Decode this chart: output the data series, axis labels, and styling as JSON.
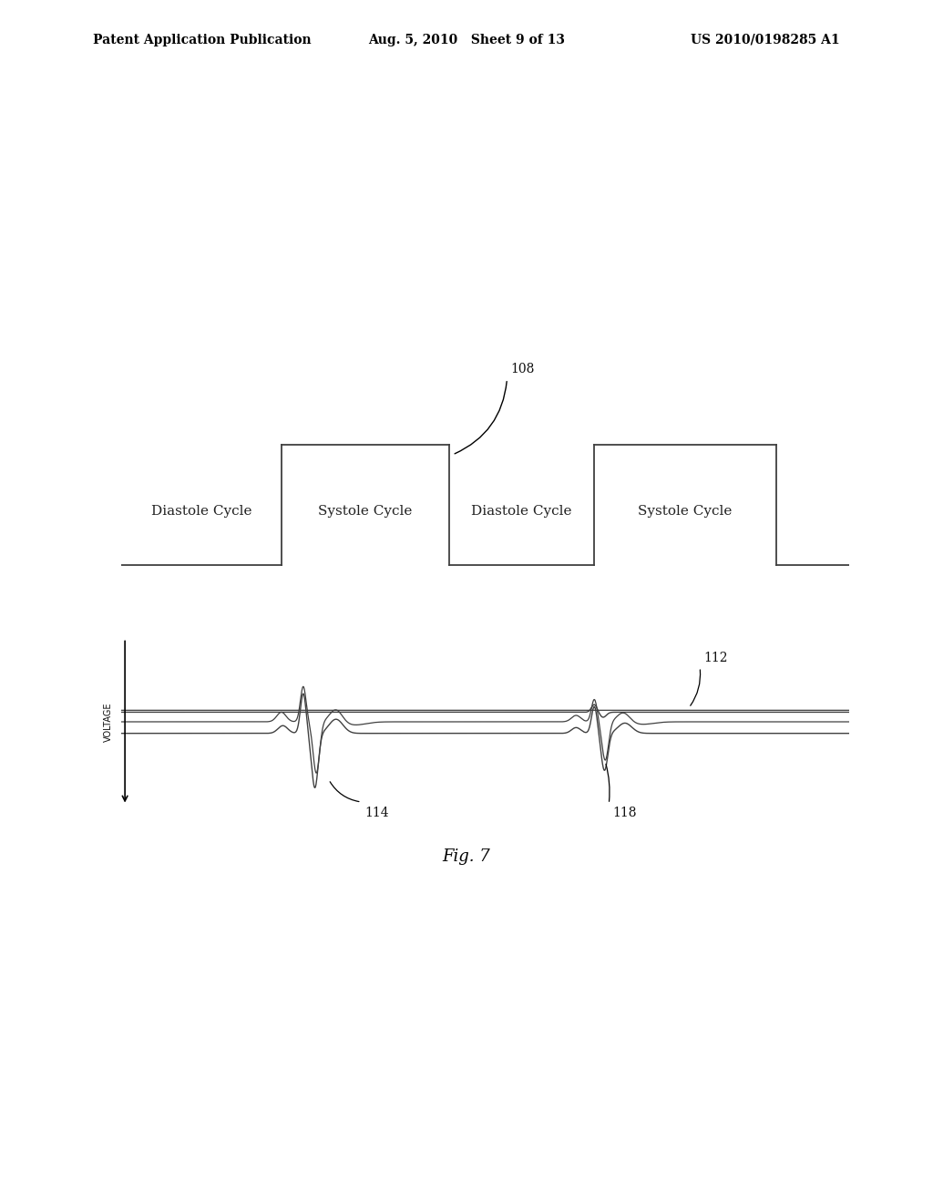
{
  "background_color": "#ffffff",
  "header_left": "Patent Application Publication",
  "header_center": "Aug. 5, 2010   Sheet 9 of 13",
  "header_right": "US 2010/0198285 A1",
  "header_fontsize": 10,
  "fig_label": "Fig. 7",
  "fig_label_fontsize": 13,
  "top_signal_labels": [
    "Diastole Cycle",
    "Systole Cycle",
    "Diastole Cycle",
    "Systole Cycle"
  ],
  "label_108": "108",
  "label_112": "112",
  "label_114": "114",
  "label_118": "118",
  "voltage_label": "VOLTAGE",
  "annotation_fontsize": 10,
  "cycle_label_fontsize": 11
}
